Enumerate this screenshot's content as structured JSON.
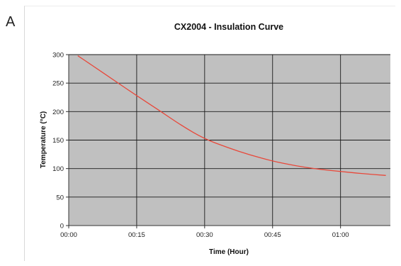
{
  "panel_label": "A",
  "chart_data": {
    "type": "line",
    "title": "CX2004 - Insulation Curve",
    "xlabel": "Time (Hour)",
    "ylabel": "Temperature (°C)",
    "x_tick_labels": [
      "00:00",
      "00:15",
      "00:30",
      "00:45",
      "01:00"
    ],
    "x_ticks_minutes": [
      0,
      15,
      30,
      45,
      60
    ],
    "xlim_minutes": [
      0,
      71
    ],
    "y_ticks": [
      0,
      50,
      100,
      150,
      200,
      250,
      300
    ],
    "ylim": [
      0,
      300
    ],
    "grid": true,
    "plot_background": "#c0c0c0",
    "series": [
      {
        "color": "#e8483a",
        "x_minutes": [
          2,
          5,
          10,
          15,
          20,
          25,
          30,
          35,
          40,
          45,
          50,
          55,
          60,
          65,
          70
        ],
        "y": [
          298,
          282,
          255,
          228,
          202,
          175,
          152,
          137,
          124,
          113,
          105,
          99,
          95,
          91,
          88
        ]
      }
    ]
  }
}
